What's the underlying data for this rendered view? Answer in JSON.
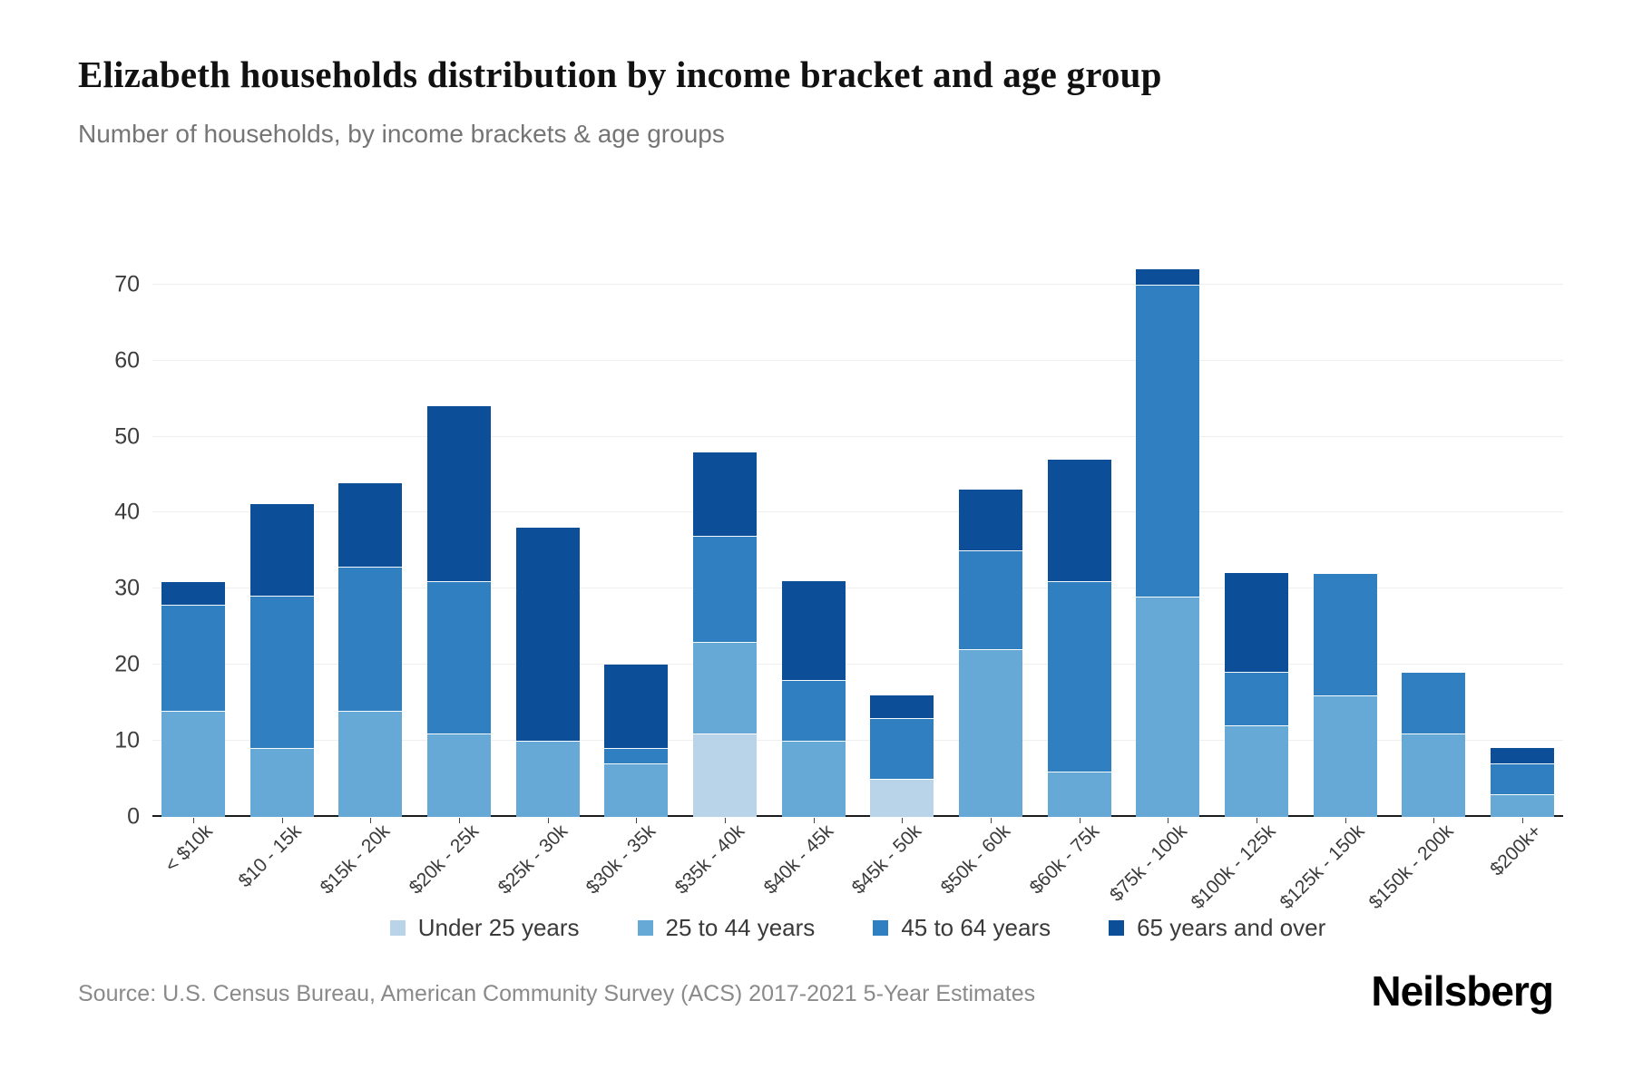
{
  "header": {
    "title": "Elizabeth households distribution by income bracket and age group",
    "subtitle": "Number of households, by income brackets & age groups"
  },
  "footer": {
    "source": "Source: U.S. Census Bureau, American Community Survey (ACS) 2017-2021 5-Year Estimates",
    "logo": "Neilsberg"
  },
  "colors": {
    "under_25": "#b9d3e9",
    "age_25_44": "#67a9d6",
    "age_45_64": "#2f7fc1",
    "age_65_over": "#0c4e97",
    "axis_line": "#1b1b1b",
    "gridline": "#efefef"
  },
  "chart_data": {
    "type": "bar",
    "stacked": true,
    "title": "Elizabeth households distribution by income bracket and age group",
    "xlabel": "",
    "ylabel": "Number of households",
    "ylim": [
      0,
      72
    ],
    "yticks": [
      0,
      10,
      20,
      30,
      40,
      50,
      60,
      70
    ],
    "grid": true,
    "legend_position": "bottom",
    "categories": [
      "< $10k",
      "$10 - 15k",
      "$15k - 20k",
      "$20k - 25k",
      "$25k - 30k",
      "$30k - 35k",
      "$35k - 40k",
      "$40k - 45k",
      "$45k - 50k",
      "$50k - 60k",
      "$60k - 75k",
      "$75k - 100k",
      "$100k - 125k",
      "$125k - 150k",
      "$150k - 200k",
      "$200k+"
    ],
    "series": [
      {
        "name": "Under 25 years",
        "color": "#b9d3e9",
        "values": [
          0,
          0,
          0,
          0,
          0,
          0,
          11,
          0,
          5,
          0,
          0,
          0,
          0,
          0,
          0,
          0
        ]
      },
      {
        "name": "25 to 44 years",
        "color": "#67a9d6",
        "values": [
          14,
          9,
          14,
          11,
          10,
          7,
          12,
          10,
          0,
          22,
          6,
          29,
          12,
          16,
          11,
          3
        ]
      },
      {
        "name": "45 to 64 years",
        "color": "#2f7fc1",
        "values": [
          14,
          20,
          19,
          20,
          0,
          2,
          14,
          8,
          8,
          13,
          25,
          41,
          7,
          16,
          8,
          4
        ]
      },
      {
        "name": "65 years and over",
        "color": "#0c4e97",
        "values": [
          3,
          12,
          11,
          23,
          28,
          11,
          11,
          13,
          3,
          8,
          16,
          2,
          13,
          0,
          0,
          2
        ]
      }
    ],
    "totals": [
      31,
      41,
      44,
      54,
      38,
      20,
      48,
      31,
      16,
      43,
      47,
      72,
      32,
      32,
      19,
      9
    ]
  }
}
